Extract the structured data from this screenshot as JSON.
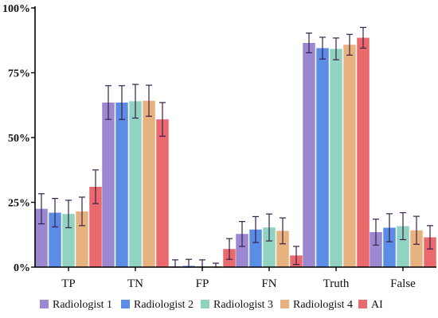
{
  "chart_data": {
    "type": "bar",
    "categories": [
      "TP",
      "TN",
      "FP",
      "FN",
      "Truth",
      "False"
    ],
    "y_tick_labels": [
      "0%",
      "25%",
      "50%",
      "75%",
      "100%"
    ],
    "ylim": [
      0,
      100
    ],
    "unit": "%",
    "legend_position": "bottom",
    "error_bars": true,
    "series": [
      {
        "name": "Radiologist 1",
        "color": "#9b88d0",
        "values": [
          22.5,
          63.5,
          0.3,
          12.8,
          86.5,
          13.5
        ],
        "err": [
          5.8,
          6.5,
          2.5,
          4.8,
          3.8,
          5.0
        ]
      },
      {
        "name": "Radiologist 2",
        "color": "#5b8de6",
        "values": [
          21.0,
          63.5,
          0.5,
          14.5,
          84.5,
          15.2
        ],
        "err": [
          5.5,
          6.5,
          2.5,
          5.0,
          4.2,
          5.4
        ]
      },
      {
        "name": "Radiologist 3",
        "color": "#8fd3c0",
        "values": [
          20.5,
          64.0,
          0.3,
          15.3,
          84.2,
          15.8
        ],
        "err": [
          5.3,
          6.5,
          2.5,
          5.2,
          4.2,
          5.2
        ]
      },
      {
        "name": "Radiologist 4",
        "color": "#e8b27f",
        "values": [
          21.5,
          64.2,
          0.3,
          14.0,
          85.8,
          14.2
        ],
        "err": [
          5.5,
          6.0,
          1.2,
          5.0,
          4.0,
          5.4
        ]
      },
      {
        "name": "AI",
        "color": "#e9696c",
        "values": [
          31.0,
          57.0,
          7.0,
          4.5,
          88.5,
          11.5
        ],
        "err": [
          6.5,
          6.5,
          4.0,
          3.5,
          4.0,
          4.5
        ]
      }
    ]
  }
}
